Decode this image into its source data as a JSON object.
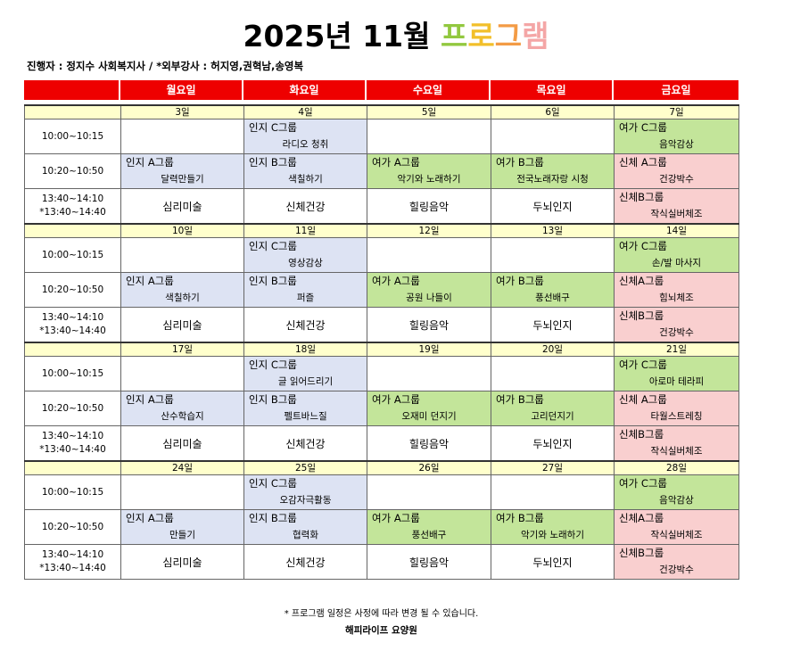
{
  "title": {
    "main": "2025년 11월",
    "program": [
      {
        "char": "프",
        "color": "#92c83f"
      },
      {
        "char": "로",
        "color": "#f2bf2a"
      },
      {
        "char": "그",
        "color": "#f39b45"
      },
      {
        "char": "램",
        "color": "#f4a6a6"
      }
    ]
  },
  "subtitle": "진행자 : 정지수 사회복지사 / *외부강사 : 허지영,권혁남,송영복",
  "weekdays": [
    "월요일",
    "화요일",
    "수요일",
    "목요일",
    "금요일"
  ],
  "colors": {
    "header": "#ee0000",
    "date_row": "#ffffcc",
    "blue": "#dde3f3",
    "green": "#c3e59a",
    "pink": "#f9cfcf"
  },
  "times": {
    "slot1": "10:00~10:15",
    "slot2": "10:20~10:50",
    "slot3_line1": "13:40~14:10",
    "slot3_line2": "*13:40~14:40"
  },
  "weeks": [
    {
      "dates": [
        "3일",
        "4일",
        "5일",
        "6일",
        "7일"
      ],
      "slot1": [
        {
          "group": "",
          "activity": "",
          "bg": ""
        },
        {
          "group": "인지 C그룹",
          "activity": "라디오 청취",
          "bg": "blue"
        },
        {
          "group": "",
          "activity": "",
          "bg": ""
        },
        {
          "group": "",
          "activity": "",
          "bg": ""
        },
        {
          "group": "여가 C그룹",
          "activity": "음악감상",
          "bg": "green"
        }
      ],
      "slot2": [
        {
          "group": "인지 A그룹",
          "activity": "달력만들기",
          "bg": "blue"
        },
        {
          "group": "인지 B그룹",
          "activity": "색칠하기",
          "bg": "blue"
        },
        {
          "group": "여가 A그룹",
          "activity": "악기와 노래하기",
          "bg": "green"
        },
        {
          "group": "여가 B그룹",
          "activity": "전국노래자랑 시청",
          "bg": "green"
        },
        {
          "group": "신체 A그룹",
          "activity": "건강박수",
          "bg": "pink"
        }
      ],
      "slot3": [
        {
          "text": "심리미술"
        },
        {
          "text": "신체건강"
        },
        {
          "text": "힐링음악"
        },
        {
          "text": "두뇌인지"
        },
        {
          "group": "신체B그룹",
          "activity": "작식실버체조",
          "bg": "pink"
        }
      ]
    },
    {
      "dates": [
        "10일",
        "11일",
        "12일",
        "13일",
        "14일"
      ],
      "slot1": [
        {
          "group": "",
          "activity": "",
          "bg": ""
        },
        {
          "group": "인지 C그룹",
          "activity": "영상감상",
          "bg": "blue"
        },
        {
          "group": "",
          "activity": "",
          "bg": ""
        },
        {
          "group": "",
          "activity": "",
          "bg": ""
        },
        {
          "group": "여가 C그룹",
          "activity": "손/발 마사지",
          "bg": "green"
        }
      ],
      "slot2": [
        {
          "group": "인지 A그룹",
          "activity": "색칠하기",
          "bg": "blue"
        },
        {
          "group": "인지 B그룹",
          "activity": "퍼즐",
          "bg": "blue"
        },
        {
          "group": "여가 A그룹",
          "activity": "공원 나들이",
          "bg": "green"
        },
        {
          "group": "여가 B그룹",
          "activity": "풍선배구",
          "bg": "green"
        },
        {
          "group": "신체A그룹",
          "activity": "힘뇌체조",
          "bg": "pink"
        }
      ],
      "slot3": [
        {
          "text": "심리미술"
        },
        {
          "text": "신체건강"
        },
        {
          "text": "힐링음악"
        },
        {
          "text": "두뇌인지"
        },
        {
          "group": "신체B그룹",
          "activity": "건강박수",
          "bg": "pink"
        }
      ]
    },
    {
      "dates": [
        "17일",
        "18일",
        "19일",
        "20일",
        "21일"
      ],
      "slot1": [
        {
          "group": "",
          "activity": "",
          "bg": ""
        },
        {
          "group": "인지 C그룹",
          "activity": "글 읽어드리기",
          "bg": "blue"
        },
        {
          "group": "",
          "activity": "",
          "bg": ""
        },
        {
          "group": "",
          "activity": "",
          "bg": ""
        },
        {
          "group": "여가 C그룹",
          "activity": "아로마 테라피",
          "bg": "green"
        }
      ],
      "slot2": [
        {
          "group": "인지 A그룹",
          "activity": "산수학습지",
          "bg": "blue"
        },
        {
          "group": "인지 B그룹",
          "activity": "펠트바느질",
          "bg": "blue"
        },
        {
          "group": "여가 A그룹",
          "activity": "오재미 던지기",
          "bg": "green"
        },
        {
          "group": "여가 B그룹",
          "activity": "고리던지기",
          "bg": "green"
        },
        {
          "group": "신체 A그룹",
          "activity": "타월스트레칭",
          "bg": "pink"
        }
      ],
      "slot3": [
        {
          "text": "심리미술"
        },
        {
          "text": "신체건강"
        },
        {
          "text": "힐링음악"
        },
        {
          "text": "두뇌인지"
        },
        {
          "group": "신체B그룹",
          "activity": "작식실버체조",
          "bg": "pink"
        }
      ]
    },
    {
      "dates": [
        "24일",
        "25일",
        "26일",
        "27일",
        "28일"
      ],
      "slot1": [
        {
          "group": "",
          "activity": "",
          "bg": ""
        },
        {
          "group": "인지 C그룹",
          "activity": "오감자극활동",
          "bg": "blue"
        },
        {
          "group": "",
          "activity": "",
          "bg": ""
        },
        {
          "group": "",
          "activity": "",
          "bg": ""
        },
        {
          "group": "여가 C그룹",
          "activity": "음악감상",
          "bg": "green"
        }
      ],
      "slot2": [
        {
          "group": "인지 A그룹",
          "activity": "만들기",
          "bg": "blue"
        },
        {
          "group": "인지 B그룹",
          "activity": "협력화",
          "bg": "blue"
        },
        {
          "group": "여가 A그룹",
          "activity": "풍선배구",
          "bg": "green"
        },
        {
          "group": "여가 B그룹",
          "activity": "악기와 노래하기",
          "bg": "green"
        },
        {
          "group": "신체A그룹",
          "activity": "작식실버체조",
          "bg": "pink"
        }
      ],
      "slot3": [
        {
          "text": "심리미술"
        },
        {
          "text": "신체건강"
        },
        {
          "text": "힐링음악"
        },
        {
          "text": "두뇌인지"
        },
        {
          "group": "신체B그룹",
          "activity": "건강박수",
          "bg": "pink"
        }
      ]
    }
  ],
  "footer": {
    "note": "* 프로그램 일정은 사정에 따라 변경 될 수 있습니다.",
    "org": "해피라이프 요양원"
  }
}
